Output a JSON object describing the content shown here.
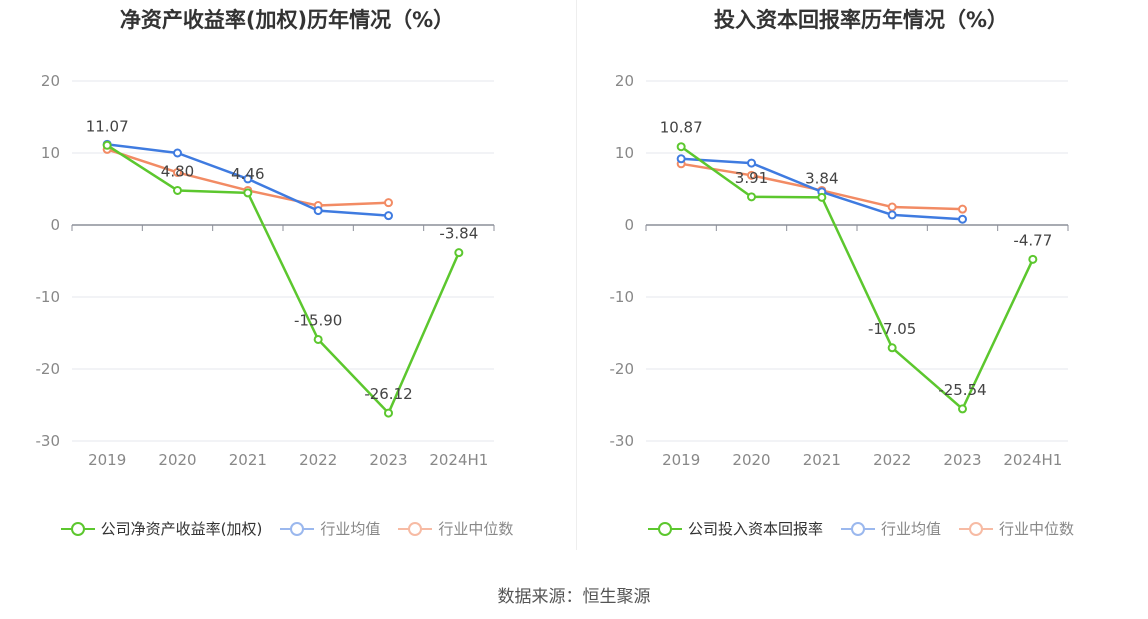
{
  "source_text": "数据来源：恒生聚源",
  "chart_data": [
    {
      "type": "line",
      "title": "净资产收益率(加权)历年情况（%）",
      "categories": [
        "2019",
        "2020",
        "2021",
        "2022",
        "2023",
        "2024H1"
      ],
      "ylim": [
        -30,
        20
      ],
      "yticks": [
        20,
        10,
        0,
        -10,
        -20,
        -30
      ],
      "grid": true,
      "legend_position": "bottom",
      "series": [
        {
          "name": "公司净资产收益率(加权)",
          "color": "#5cc72e",
          "values": [
            11.07,
            4.8,
            4.46,
            -15.9,
            -26.12,
            -3.84
          ],
          "labels": [
            "11.07",
            "4.80",
            "4.46",
            "-15.90",
            "-26.12",
            "-3.84"
          ]
        },
        {
          "name": "行业均值",
          "color": "#3f7be0",
          "values": [
            11.2,
            10.0,
            6.4,
            2.0,
            1.3,
            null
          ]
        },
        {
          "name": "行业中位数",
          "color": "#f28b64",
          "values": [
            10.5,
            7.3,
            4.8,
            2.7,
            3.1,
            null
          ]
        }
      ]
    },
    {
      "type": "line",
      "title": "投入资本回报率历年情况（%）",
      "categories": [
        "2019",
        "2020",
        "2021",
        "2022",
        "2023",
        "2024H1"
      ],
      "ylim": [
        -30,
        20
      ],
      "yticks": [
        20,
        10,
        0,
        -10,
        -20,
        -30
      ],
      "grid": true,
      "legend_position": "bottom",
      "series": [
        {
          "name": "公司投入资本回报率",
          "color": "#5cc72e",
          "values": [
            10.87,
            3.91,
            3.84,
            -17.05,
            -25.54,
            -4.77
          ],
          "labels": [
            "10.87",
            "3.91",
            "3.84",
            "-17.05",
            "-25.54",
            "-4.77"
          ]
        },
        {
          "name": "行业均值",
          "color": "#3f7be0",
          "values": [
            9.2,
            8.6,
            4.6,
            1.4,
            0.8,
            null
          ]
        },
        {
          "name": "行业中位数",
          "color": "#f28b64",
          "values": [
            8.5,
            6.9,
            4.8,
            2.5,
            2.2,
            null
          ]
        }
      ]
    }
  ]
}
